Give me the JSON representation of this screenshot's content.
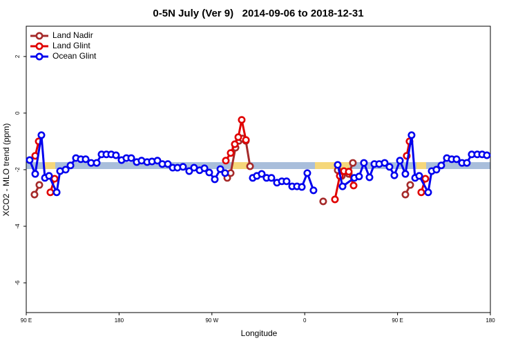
{
  "chart_data": {
    "type": "line",
    "title": "0-5N July (Ver 9)   2014-09-06 to 2018-12-31",
    "x_label": "Longitude",
    "y_label": "XCO2 - MLO trend (ppm)",
    "xlim": [
      90,
      540
    ],
    "ylim": [
      -7.05,
      3.07
    ],
    "xticks": [
      {
        "value": 90,
        "label": "90 E"
      },
      180,
      {
        "value": 270,
        "label": "90 W"
      },
      {
        "value": 360,
        "label": "0"
      },
      {
        "value": 450,
        "label": "90 E"
      },
      {
        "value": 540,
        "label": "180"
      }
    ],
    "yticks": [
      -6,
      -4,
      -2,
      0,
      2
    ],
    "legend": "top-left",
    "series": [
      {
        "name": "Land Nadir",
        "color": "#a52a2a",
        "x": [
          98.0,
          102.7,
          null,
          284.9,
          288.2,
          292.9,
          296.2,
          299.6,
          302.9,
          307.0,
          null,
          377.9,
          null,
          392.0,
          396.0,
          402.7,
          406.7,
          null,
          457.6,
          462.3
        ],
        "values": [
          -2.88,
          -2.54,
          null,
          -2.29,
          -2.12,
          -1.22,
          -0.98,
          -0.9,
          -0.98,
          -1.88,
          null,
          -3.12,
          null,
          -2.02,
          -2.22,
          -2.15,
          -1.76,
          null,
          -2.88,
          -2.54
        ]
      },
      {
        "name": "Land Glint",
        "color": "#e00000",
        "x": [
          98.7,
          102.1,
          null,
          113.4,
          117.5,
          null,
          283.5,
          288.2,
          292.2,
          295.6,
          298.9,
          303.0,
          null,
          389.3,
          394.0,
          398.0,
          402.7,
          407.4,
          null,
          458.9,
          461.6,
          null,
          473.0,
          477.0
        ],
        "values": [
          -1.51,
          -1.0,
          null,
          -2.8,
          -2.32,
          null,
          -1.68,
          -1.41,
          -1.1,
          -0.85,
          -0.24,
          -0.95,
          null,
          -3.05,
          -2.22,
          -2.05,
          -2.07,
          -2.56,
          null,
          -1.51,
          -1.0,
          null,
          -2.8,
          -2.32
        ]
      },
      {
        "name": "Ocean Glint",
        "color": "#0000ee",
        "x": [
          93.3,
          98.7,
          104.7,
          108.1,
          112.1,
          119.5,
          122.8,
          128.2,
          132.9,
          138.2,
          142.9,
          147.6,
          152.9,
          158.3,
          163.0,
          167.7,
          172.4,
          177.0,
          182.4,
          187.1,
          191.8,
          197.1,
          201.8,
          207.2,
          211.9,
          217.2,
          221.9,
          227.3,
          232.0,
          236.6,
          242.0,
          248.0,
          252.7,
          258.1,
          262.8,
          267.4,
          272.8,
          278.2,
          282.8,
          null,
          309.6,
          313.6,
          318.3,
          323.0,
          327.7,
          333.1,
          337.8,
          342.4,
          347.8,
          352.5,
          357.2,
          362.5,
          368.5,
          null,
          392.0,
          396.7,
          408.1,
          412.7,
          417.4,
          422.8,
          427.5,
          432.2,
          437.5,
          442.2,
          446.9,
          452.3,
          457.6,
          463.6,
          467.0,
          471.0,
          479.7,
          483.1,
          487.7,
          492.4,
          497.8,
          502.5,
          507.2,
          512.5,
          517.2,
          521.9,
          527.3,
          532.0,
          536.6
        ],
        "values": [
          -1.66,
          -2.15,
          -0.78,
          -2.29,
          -2.22,
          -2.8,
          -2.05,
          -2.0,
          -1.85,
          -1.59,
          -1.63,
          -1.63,
          -1.76,
          -1.76,
          -1.46,
          -1.46,
          -1.46,
          -1.49,
          -1.66,
          -1.59,
          -1.59,
          -1.73,
          -1.68,
          -1.73,
          -1.71,
          -1.68,
          -1.8,
          -1.8,
          -1.93,
          -1.93,
          -1.9,
          -2.05,
          -1.93,
          -2.02,
          -1.95,
          -2.1,
          -2.34,
          -1.98,
          -2.12,
          null,
          -2.29,
          -2.22,
          -2.15,
          -2.29,
          -2.29,
          -2.46,
          -2.41,
          -2.41,
          -2.59,
          -2.59,
          -2.61,
          -2.12,
          -2.73,
          null,
          -1.83,
          -2.59,
          -2.29,
          -2.24,
          -1.76,
          -2.27,
          -1.8,
          -1.8,
          -1.76,
          -1.9,
          -2.2,
          -1.68,
          -2.15,
          -0.78,
          -2.29,
          -2.22,
          -2.8,
          -2.05,
          -2.0,
          -1.85,
          -1.59,
          -1.63,
          -1.63,
          -1.76,
          -1.76,
          -1.46,
          -1.46,
          -1.46,
          -1.49
        ]
      }
    ]
  }
}
